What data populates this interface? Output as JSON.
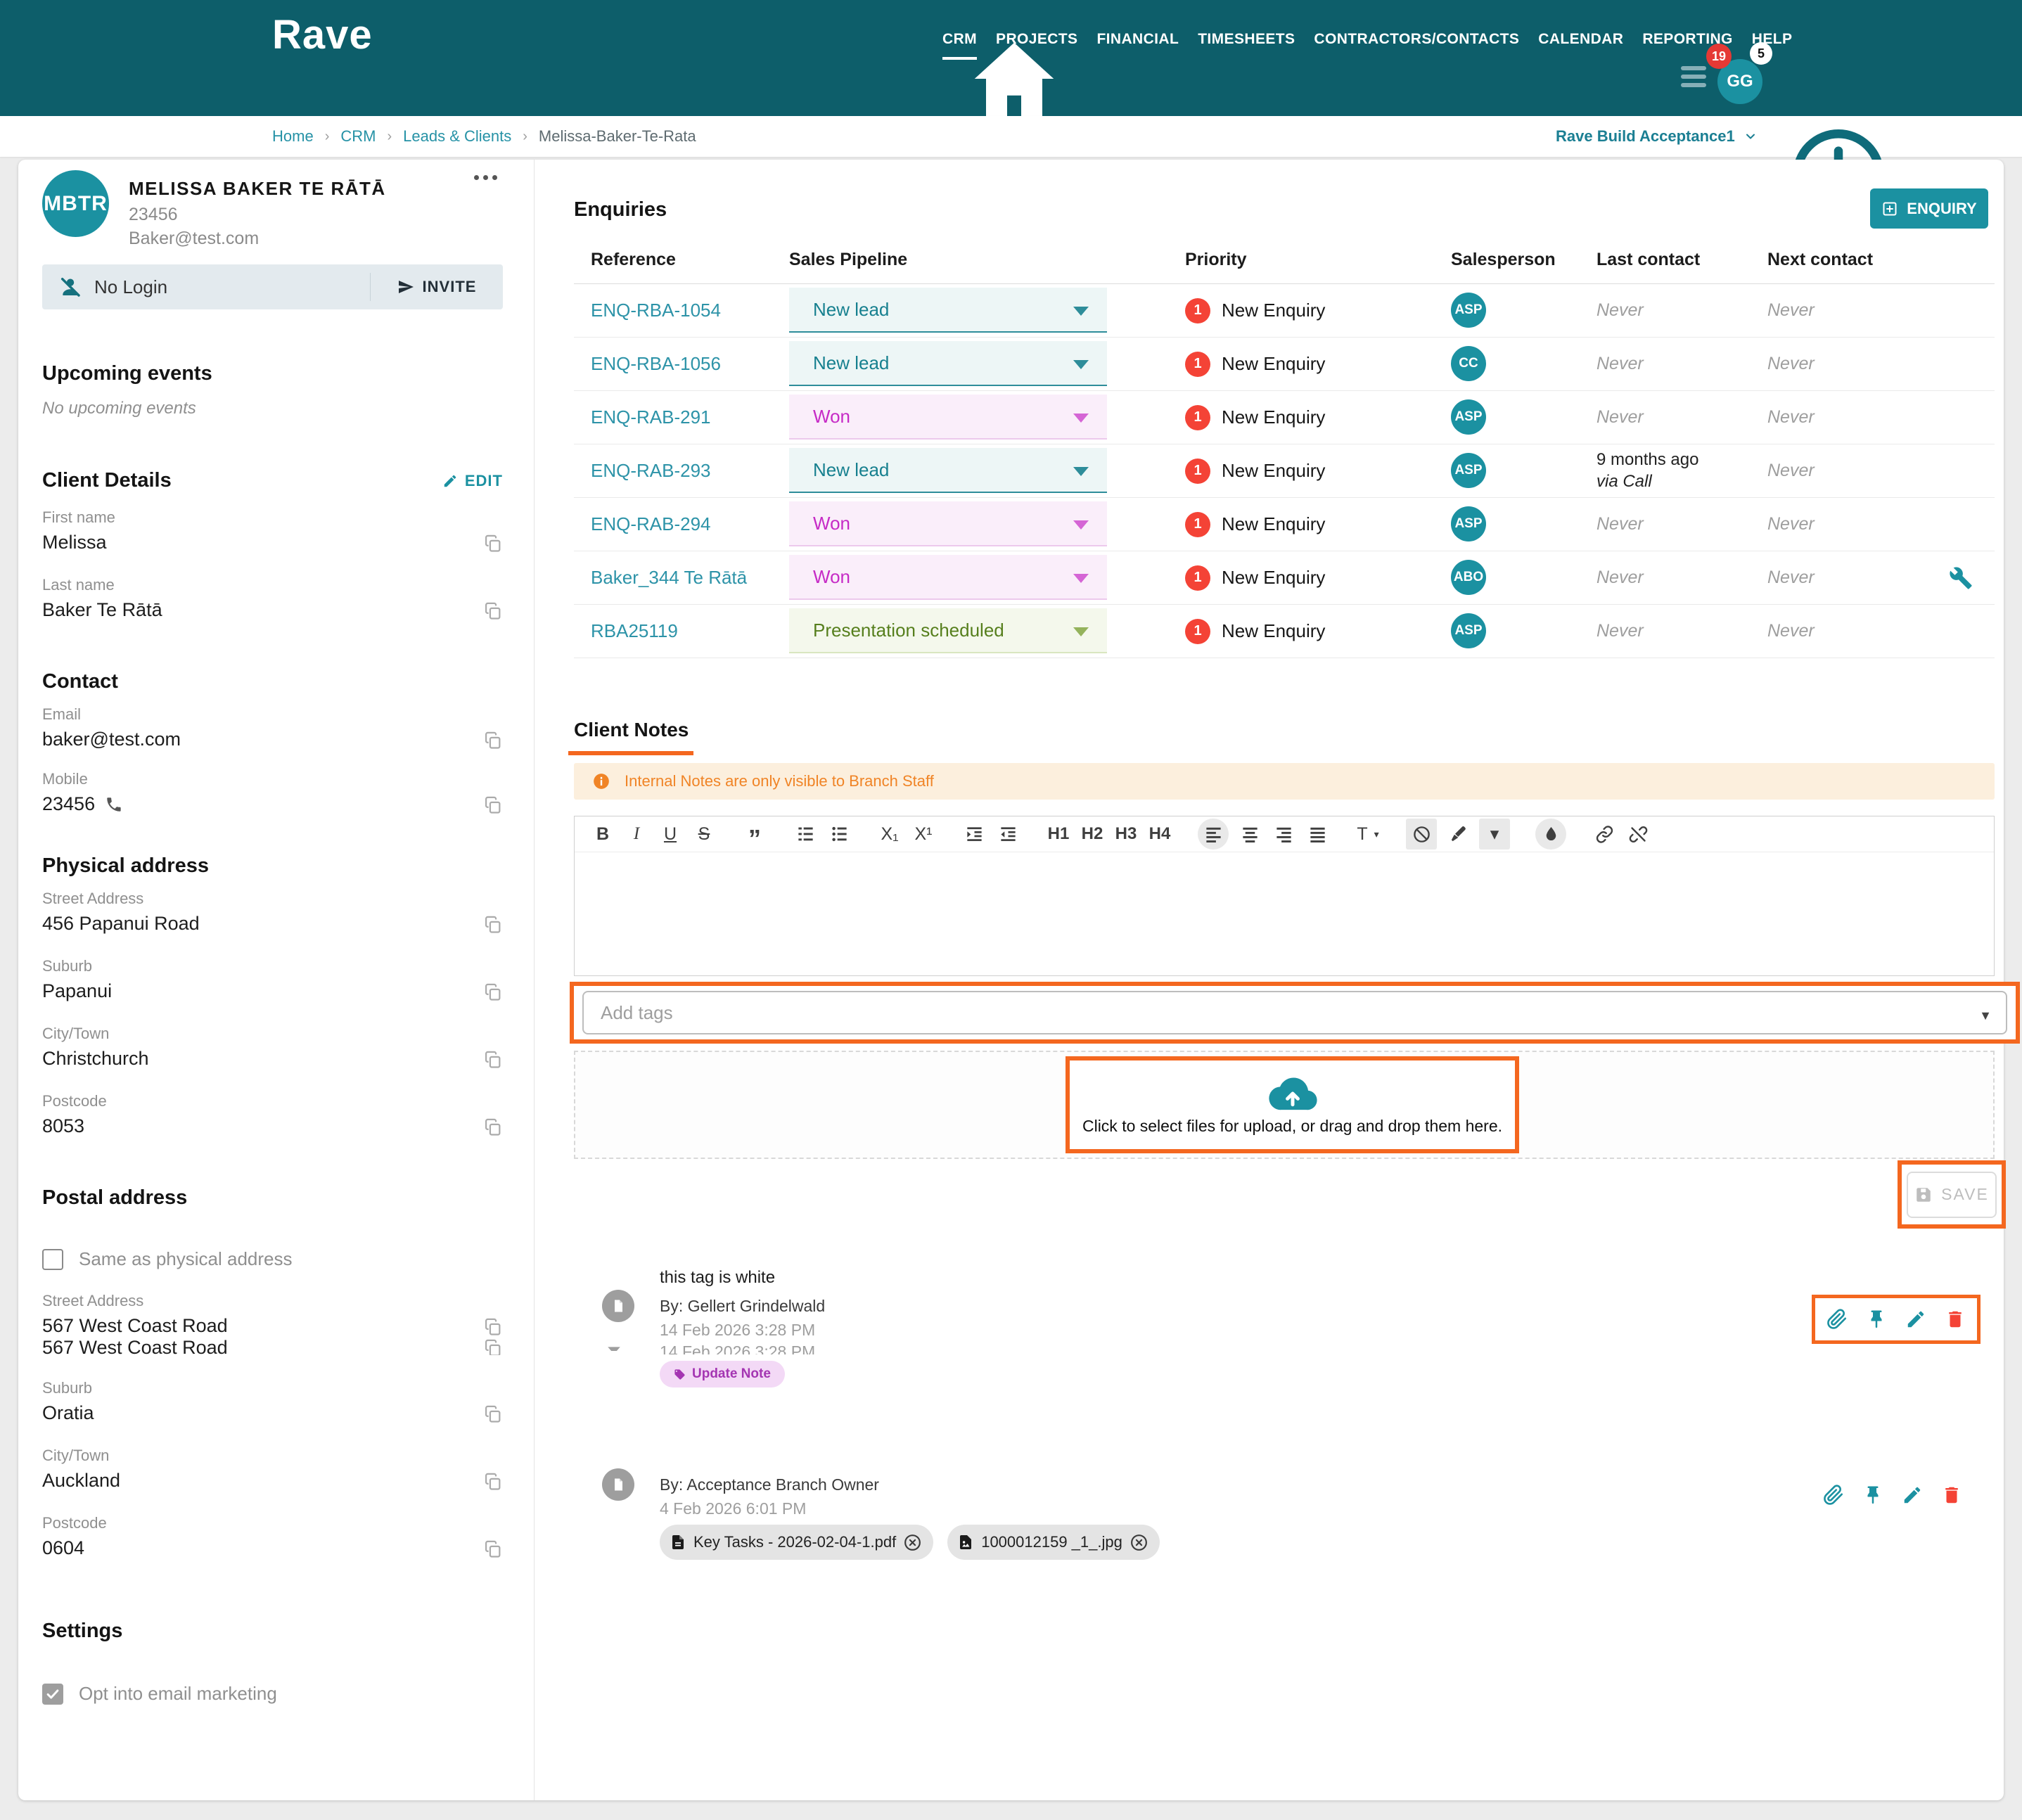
{
  "colors": {
    "header_teal": "#0D5E6A",
    "accent_teal": "#1B91A1",
    "link_teal": "#2D93A8",
    "highlight_orange": "#F4671F",
    "banner_orange": "#F08426",
    "priority_red": "#F44336",
    "won_magenta": "#C62BC6",
    "newlead_teal": "#17808F",
    "presentation_green": "#567F1D",
    "tag_purple": "#A435B2"
  },
  "nav": {
    "brand": "Rave",
    "items": [
      {
        "label": "CRM",
        "active": true
      },
      {
        "label": "PROJECTS"
      },
      {
        "label": "FINANCIAL"
      },
      {
        "label": "TIMESHEETS"
      },
      {
        "label": "CONTRACTORS/CONTACTS"
      },
      {
        "label": "CALENDAR"
      },
      {
        "label": "REPORTING"
      },
      {
        "label": "HELP"
      }
    ],
    "badge_red": "19",
    "badge_white": "5",
    "avatar_initials": "GG"
  },
  "breadcrumb": {
    "items": [
      "Home",
      "CRM",
      "Leads & Clients"
    ],
    "current": "Melissa-Baker-Te-Rata",
    "environment": "Rave Build Acceptance1"
  },
  "sidebar": {
    "initials": "MBTR",
    "name": "MELISSA BAKER TE RĀTĀ",
    "client_number": "23456",
    "email_display": "Baker@test.com",
    "login_status": "No Login",
    "invite_label": "INVITE",
    "upcoming": {
      "title": "Upcoming events",
      "empty": "No upcoming events"
    },
    "client_details": {
      "title": "Client Details",
      "edit_label": "EDIT"
    },
    "first_name": {
      "label": "First name",
      "value": "Melissa"
    },
    "last_name": {
      "label": "Last name",
      "value": "Baker Te Rātā"
    },
    "contact_title": "Contact",
    "email": {
      "label": "Email",
      "value": "baker@test.com"
    },
    "mobile": {
      "label": "Mobile",
      "value": "23456"
    },
    "physical_title": "Physical address",
    "physical": {
      "street": {
        "label": "Street Address",
        "value": "456 Papanui Road"
      },
      "suburb": {
        "label": "Suburb",
        "value": "Papanui"
      },
      "city": {
        "label": "City/Town",
        "value": "Christchurch"
      },
      "postcode": {
        "label": "Postcode",
        "value": "8053"
      }
    },
    "postal_title": "Postal address",
    "same_as_physical": "Same as physical address",
    "postal": {
      "street": {
        "label": "Street Address",
        "value": "567 West Coast Road"
      },
      "street_dup": "567 West Coast Road",
      "suburb": {
        "label": "Suburb",
        "value": "Oratia"
      },
      "city": {
        "label": "City/Town",
        "value": "Auckland"
      },
      "postcode": {
        "label": "Postcode",
        "value": "0604"
      }
    },
    "settings_title": "Settings",
    "opt_in_label": "Opt into email marketing"
  },
  "enquiries": {
    "title": "Enquiries",
    "new_button": "ENQUIRY",
    "columns": [
      "Reference",
      "Sales Pipeline",
      "Priority",
      "Salesperson",
      "Last contact",
      "Next contact"
    ],
    "rows": [
      {
        "reference": "ENQ-RBA-1054",
        "pipeline": "New lead",
        "pipeline_type": "newlead",
        "priority_count": "1",
        "priority_label": "New Enquiry",
        "salesperson": "ASP",
        "last_contact": "Never",
        "next_contact": "Never"
      },
      {
        "reference": "ENQ-RBA-1056",
        "pipeline": "New lead",
        "pipeline_type": "newlead",
        "priority_count": "1",
        "priority_label": "New Enquiry",
        "salesperson": "CC",
        "last_contact": "Never",
        "next_contact": "Never"
      },
      {
        "reference": "ENQ-RAB-291",
        "pipeline": "Won",
        "pipeline_type": "won",
        "priority_count": "1",
        "priority_label": "New Enquiry",
        "salesperson": "ASP",
        "last_contact": "Never",
        "next_contact": "Never"
      },
      {
        "reference": "ENQ-RAB-293",
        "pipeline": "New lead",
        "pipeline_type": "newlead",
        "priority_count": "1",
        "priority_label": "New Enquiry",
        "salesperson": "ASP",
        "last_contact": "9 months ago",
        "last_contact_via": "via Call",
        "next_contact": "Never"
      },
      {
        "reference": "ENQ-RAB-294",
        "pipeline": "Won",
        "pipeline_type": "won",
        "priority_count": "1",
        "priority_label": "New Enquiry",
        "salesperson": "ASP",
        "last_contact": "Never",
        "next_contact": "Never"
      },
      {
        "reference": "Baker_344 Te Rātā",
        "pipeline": "Won",
        "pipeline_type": "won",
        "priority_count": "1",
        "priority_label": "New Enquiry",
        "salesperson": "ABO",
        "last_contact": "Never",
        "next_contact": "Never",
        "has_tools": true
      },
      {
        "reference": "RBA25119",
        "pipeline": "Presentation scheduled",
        "pipeline_type": "presentation",
        "priority_count": "1",
        "priority_label": "New Enquiry",
        "salesperson": "ASP",
        "last_contact": "Never",
        "next_contact": "Never"
      }
    ]
  },
  "notes": {
    "tab_label": "Client Notes",
    "banner": "Internal Notes are only visible to Branch Staff",
    "add_tags_placeholder": "Add tags",
    "upload_text": "Click to select files for upload, or drag and drop them here.",
    "save_label": "SAVE",
    "toolbar": [
      {
        "name": "bold",
        "kind": "text",
        "glyph": "B"
      },
      {
        "name": "italic",
        "kind": "text",
        "glyph": "I"
      },
      {
        "name": "underline",
        "kind": "text",
        "glyph": "U"
      },
      {
        "name": "strikethrough",
        "kind": "text",
        "glyph": "S"
      },
      {
        "name": "blockquote",
        "kind": "text",
        "glyph": "”",
        "gapBefore": true
      },
      {
        "name": "ordered-list",
        "kind": "svg",
        "ref": "i-list-ol",
        "gapBefore": true
      },
      {
        "name": "unordered-list",
        "kind": "svg",
        "ref": "i-list-ul"
      },
      {
        "name": "subscript",
        "kind": "text",
        "glyph": "X₁",
        "gapBefore": true
      },
      {
        "name": "superscript",
        "kind": "text",
        "glyph": "X¹"
      },
      {
        "name": "indent",
        "kind": "svg",
        "ref": "i-indent",
        "gapBefore": true
      },
      {
        "name": "outdent",
        "kind": "svg",
        "ref": "i-outdent"
      },
      {
        "name": "heading-1",
        "kind": "text",
        "glyph": "H1",
        "gapBefore": true
      },
      {
        "name": "heading-2",
        "kind": "text",
        "glyph": "H2"
      },
      {
        "name": "heading-3",
        "kind": "text",
        "glyph": "H3"
      },
      {
        "name": "heading-4",
        "kind": "text",
        "glyph": "H4"
      },
      {
        "name": "align-left",
        "kind": "svg",
        "ref": "i-align-left",
        "active": true,
        "shape": "circle",
        "gapBefore": true
      },
      {
        "name": "align-center",
        "kind": "svg",
        "ref": "i-align-center"
      },
      {
        "name": "align-right",
        "kind": "svg",
        "ref": "i-align-right"
      },
      {
        "name": "align-justify",
        "kind": "svg",
        "ref": "i-align-justify"
      },
      {
        "name": "text-style",
        "kind": "text",
        "glyph": "T",
        "caret": true,
        "gapBefore": true
      },
      {
        "name": "clear-format",
        "kind": "svg",
        "ref": "i-ban",
        "active": true,
        "shape": "square",
        "gapBefore": true
      },
      {
        "name": "highlighter",
        "kind": "svg",
        "ref": "i-marker"
      },
      {
        "name": "highlighter-caret",
        "kind": "text",
        "glyph": "▾",
        "active": true,
        "shape": "square"
      },
      {
        "name": "fill-color",
        "kind": "svg",
        "ref": "i-droplet",
        "active": true,
        "shape": "circle",
        "gapBefore": true
      },
      {
        "name": "link",
        "kind": "svg",
        "ref": "i-link",
        "gapBefore": true
      },
      {
        "name": "unlink",
        "kind": "svg",
        "ref": "i-unlink"
      }
    ],
    "action_icons": [
      {
        "name": "attach",
        "ref": "i-paperclip",
        "red": false
      },
      {
        "name": "pin",
        "ref": "i-pin",
        "red": false
      },
      {
        "name": "edit",
        "ref": "i-pencil",
        "red": false
      },
      {
        "name": "delete",
        "ref": "i-trash",
        "red": true
      }
    ],
    "items": [
      {
        "content": "this tag is white",
        "by": "By: Gellert Grindelwald",
        "date": "14 Feb 2026 3:28 PM",
        "date_duplicate": "14 Feb 2026 3:28 PM",
        "tag": "Update Note"
      },
      {
        "by": "By: Acceptance Branch Owner",
        "date": "4 Feb 2026 6:01 PM",
        "attachments": [
          {
            "name": "Key Tasks - 2026-02-04-1.pdf",
            "type": "pdf"
          },
          {
            "name": "1000012159 _1_.jpg",
            "type": "img"
          }
        ]
      }
    ]
  }
}
